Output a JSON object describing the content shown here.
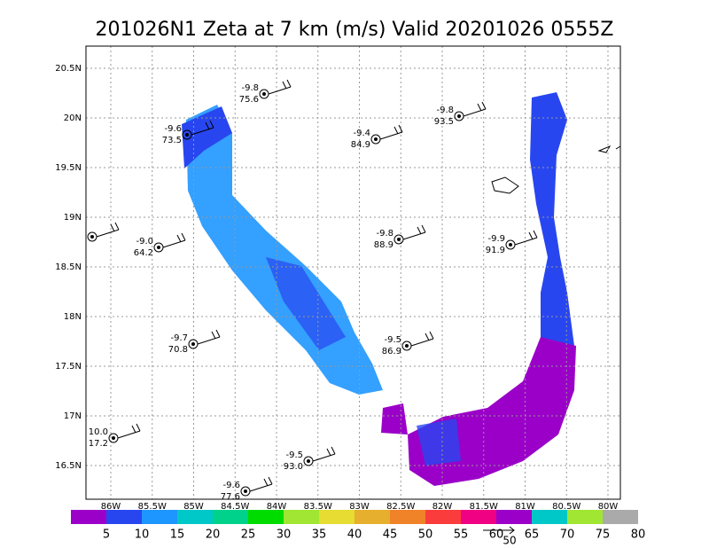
{
  "title": "201026N1 Zeta at 7 km (m/s) Valid 20201026 0555Z",
  "x_axis": {
    "labels": [
      "86W",
      "85.5W",
      "85W",
      "84.5W",
      "84W",
      "83.5W",
      "83W",
      "82.5W",
      "82W",
      "81.5W",
      "81W",
      "80.5W",
      "80W"
    ]
  },
  "y_axis": {
    "labels": [
      "20.5N",
      "20N",
      "19.5N",
      "19N",
      "18.5N",
      "18N",
      "17.5N",
      "17N",
      "16.5N"
    ]
  },
  "colorbar": {
    "labels": [
      "5",
      "10",
      "15",
      "20",
      "25",
      "30",
      "35",
      "40",
      "45",
      "50",
      "55",
      "60",
      "65",
      "70",
      "75",
      "80"
    ]
  },
  "reference_vector": {
    "label": "50"
  },
  "stations": [
    {
      "top": "-9.8",
      "bottom": "75.6"
    },
    {
      "top": "-9.6",
      "bottom": "73.5"
    },
    {
      "top": "-9.4",
      "bottom": "84.9"
    },
    {
      "top": "-9.8",
      "bottom": "93.5"
    },
    {
      "top": "-9.0",
      "bottom": "64.2"
    },
    {
      "top": "-9.8",
      "bottom": "88.9"
    },
    {
      "top": "-9.9",
      "bottom": "91.9"
    },
    {
      "top": "-9.7",
      "bottom": "70.8"
    },
    {
      "top": "-9.5",
      "bottom": "86.9"
    },
    {
      "top": "10.0",
      "bottom": "17.2"
    },
    {
      "top": "-9.5",
      "bottom": "93.0"
    },
    {
      "top": "-9.6",
      "bottom": "77.6"
    }
  ]
}
